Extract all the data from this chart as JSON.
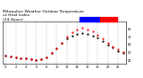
{
  "title": "Milwaukee Weather Outdoor Temperature\nvs Heat Index\n(24 Hours)",
  "title_fontsize": 3.2,
  "background_color": "#ffffff",
  "grid_color": "#aaaaaa",
  "tick_fontsize": 2.5,
  "hours": [
    0,
    1,
    2,
    3,
    4,
    5,
    6,
    7,
    8,
    9,
    10,
    11,
    12,
    13,
    14,
    15,
    16,
    17,
    18,
    19,
    20,
    21,
    22,
    23
  ],
  "temp_values": [
    46,
    45,
    44,
    43,
    42,
    41,
    40,
    41,
    44,
    49,
    55,
    62,
    68,
    72,
    74,
    75,
    74,
    72,
    69,
    65,
    60,
    56,
    52,
    49
  ],
  "heat_values": [
    46,
    45,
    44,
    43,
    42,
    41,
    40,
    41,
    44,
    49,
    55,
    62,
    70,
    76,
    80,
    82,
    80,
    77,
    73,
    68,
    62,
    58,
    54,
    51
  ],
  "temp_color": "#000000",
  "heat_color": "#ff0000",
  "legend_blue_color": "#0000ff",
  "legend_red_color": "#ff0000",
  "ylim": [
    35,
    90
  ],
  "xlim": [
    -0.5,
    23.5
  ],
  "yticks": [
    40,
    50,
    60,
    70,
    80
  ],
  "ytick_labels": [
    "40",
    "50",
    "60",
    "70",
    "80"
  ],
  "xticks": [
    0,
    2,
    4,
    6,
    8,
    10,
    12,
    14,
    16,
    18,
    20,
    22
  ],
  "xtick_labels": [
    "0",
    "2",
    "4",
    "6",
    "8",
    "10",
    "12",
    "14",
    "16",
    "18",
    "20",
    "22"
  ]
}
